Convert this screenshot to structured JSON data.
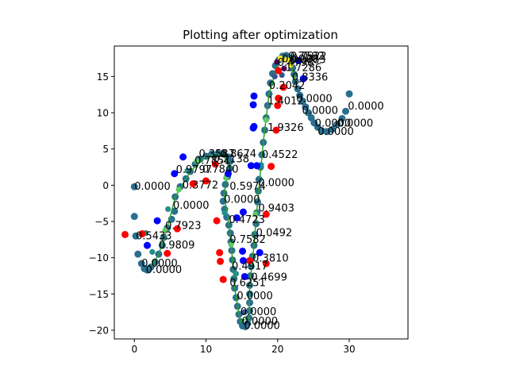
{
  "chart_data": {
    "type": "scatter",
    "title": "Plotting after optimization",
    "xlabel": "",
    "ylabel": "",
    "xlim": [
      -2.8,
      38.2
    ],
    "ylim": [
      -21.2,
      19.2
    ],
    "xticks": [
      0,
      10,
      20,
      30
    ],
    "yticks": [
      -20,
      -15,
      -10,
      -5,
      0,
      5,
      10,
      15
    ],
    "grid": false,
    "legend": "none",
    "colors": {
      "trajectory": "#2b6f8e",
      "line": "#2ca02c",
      "red": "#ff0000",
      "blue": "#0000ff",
      "viridis": [
        "#440154",
        "#3b528b",
        "#21918c",
        "#5ec962",
        "#fde725"
      ]
    },
    "trajectory": [
      {
        "x": 0.0,
        "y": -0.2
      },
      {
        "x": 0.0,
        "y": -4.3
      },
      {
        "x": 0.2,
        "y": -7.0
      },
      {
        "x": 0.5,
        "y": -9.5
      },
      {
        "x": 1.0,
        "y": -10.8
      },
      {
        "x": 1.4,
        "y": -11.5
      },
      {
        "x": 1.8,
        "y": -11.7
      },
      {
        "x": 2.3,
        "y": -11.3
      },
      {
        "x": 2.9,
        "y": -10.6
      },
      {
        "x": 3.4,
        "y": -9.5
      },
      {
        "x": 3.9,
        "y": -8.3
      },
      {
        "x": 4.1,
        "y": -7.2
      },
      {
        "x": 4.6,
        "y": -5.9
      },
      {
        "x": 5.2,
        "y": -4.7
      },
      {
        "x": 5.6,
        "y": -3.6
      },
      {
        "x": 5.7,
        "y": -1.6
      },
      {
        "x": 6.4,
        "y": -0.2
      },
      {
        "x": 7.2,
        "y": 0.9
      },
      {
        "x": 7.8,
        "y": 1.9
      },
      {
        "x": 8.5,
        "y": 2.9
      },
      {
        "x": 9.2,
        "y": 3.6
      },
      {
        "x": 10.0,
        "y": 4.0
      },
      {
        "x": 10.8,
        "y": 4.3
      },
      {
        "x": 11.7,
        "y": 4.4
      },
      {
        "x": 12.4,
        "y": 4.3
      },
      {
        "x": 13.1,
        "y": 3.9
      },
      {
        "x": 13.4,
        "y": 3.3
      },
      {
        "x": 13.3,
        "y": 2.3
      },
      {
        "x": 13.0,
        "y": 1.2
      },
      {
        "x": 12.7,
        "y": 0.1
      },
      {
        "x": 12.5,
        "y": -1.1
      },
      {
        "x": 12.4,
        "y": -2.2
      },
      {
        "x": 12.6,
        "y": -3.3
      },
      {
        "x": 12.9,
        "y": -4.4
      },
      {
        "x": 13.2,
        "y": -5.5
      },
      {
        "x": 13.4,
        "y": -6.6
      },
      {
        "x": 13.5,
        "y": -7.8
      },
      {
        "x": 13.6,
        "y": -9.0
      },
      {
        "x": 13.7,
        "y": -10.3
      },
      {
        "x": 13.8,
        "y": -11.6
      },
      {
        "x": 13.9,
        "y": -12.9
      },
      {
        "x": 14.0,
        "y": -14.2
      },
      {
        "x": 14.2,
        "y": -15.5
      },
      {
        "x": 14.4,
        "y": -16.7
      },
      {
        "x": 14.6,
        "y": -17.8
      },
      {
        "x": 14.8,
        "y": -18.8
      },
      {
        "x": 15.1,
        "y": -19.4
      },
      {
        "x": 15.5,
        "y": -19.5
      },
      {
        "x": 15.8,
        "y": -19.1
      },
      {
        "x": 16.0,
        "y": -18.3
      },
      {
        "x": 16.1,
        "y": -17.3
      },
      {
        "x": 16.1,
        "y": -16.2
      },
      {
        "x": 16.1,
        "y": -15.0
      },
      {
        "x": 16.1,
        "y": -13.8
      },
      {
        "x": 16.2,
        "y": -12.5
      },
      {
        "x": 16.3,
        "y": -11.2
      },
      {
        "x": 16.5,
        "y": -9.8
      },
      {
        "x": 16.7,
        "y": -8.3
      },
      {
        "x": 16.8,
        "y": -6.8
      },
      {
        "x": 17.0,
        "y": -5.3
      },
      {
        "x": 17.1,
        "y": -3.8
      },
      {
        "x": 17.2,
        "y": -2.3
      },
      {
        "x": 17.3,
        "y": -0.8
      },
      {
        "x": 17.4,
        "y": 0.8
      },
      {
        "x": 17.6,
        "y": 2.5
      },
      {
        "x": 17.8,
        "y": 4.2
      },
      {
        "x": 18.0,
        "y": 5.9
      },
      {
        "x": 18.2,
        "y": 7.6
      },
      {
        "x": 18.4,
        "y": 9.3
      },
      {
        "x": 18.6,
        "y": 11.0
      },
      {
        "x": 18.8,
        "y": 12.6
      },
      {
        "x": 19.0,
        "y": 14.1
      },
      {
        "x": 19.3,
        "y": 15.4
      },
      {
        "x": 19.7,
        "y": 16.5
      },
      {
        "x": 20.2,
        "y": 17.3
      },
      {
        "x": 20.7,
        "y": 17.8
      },
      {
        "x": 21.2,
        "y": 17.9
      },
      {
        "x": 21.6,
        "y": 17.6
      },
      {
        "x": 21.9,
        "y": 17.0
      },
      {
        "x": 22.1,
        "y": 16.2
      },
      {
        "x": 22.3,
        "y": 15.3
      },
      {
        "x": 22.5,
        "y": 14.3
      },
      {
        "x": 22.8,
        "y": 13.3
      },
      {
        "x": 23.1,
        "y": 12.4
      },
      {
        "x": 23.5,
        "y": 11.6
      },
      {
        "x": 23.9,
        "y": 10.8
      },
      {
        "x": 24.3,
        "y": 10.0
      },
      {
        "x": 24.7,
        "y": 9.3
      },
      {
        "x": 25.1,
        "y": 8.6
      },
      {
        "x": 25.6,
        "y": 8.0
      },
      {
        "x": 26.2,
        "y": 7.5
      },
      {
        "x": 26.9,
        "y": 7.4
      },
      {
        "x": 27.6,
        "y": 7.7
      },
      {
        "x": 28.3,
        "y": 8.4
      },
      {
        "x": 29.0,
        "y": 9.2
      },
      {
        "x": 29.5,
        "y": 10.2
      },
      {
        "x": 30.0,
        "y": 12.6
      }
    ],
    "green_path": [
      {
        "x": 2.3,
        "y": -11.3
      },
      {
        "x": 3.4,
        "y": -9.5
      },
      {
        "x": 4.6,
        "y": -5.9
      },
      {
        "x": 5.7,
        "y": -1.6
      },
      {
        "x": 7.8,
        "y": 1.9
      },
      {
        "x": 10.0,
        "y": 4.0
      },
      {
        "x": 12.4,
        "y": 4.3
      },
      {
        "x": 13.3,
        "y": 2.3
      },
      {
        "x": 12.5,
        "y": -1.1
      },
      {
        "x": 13.2,
        "y": -5.5
      },
      {
        "x": 13.6,
        "y": -9.0
      },
      {
        "x": 14.0,
        "y": -14.2
      },
      {
        "x": 14.8,
        "y": -18.8
      },
      {
        "x": 16.0,
        "y": -18.3
      },
      {
        "x": 16.1,
        "y": -13.8
      },
      {
        "x": 16.7,
        "y": -8.3
      },
      {
        "x": 17.2,
        "y": -2.3
      },
      {
        "x": 18.0,
        "y": 5.9
      },
      {
        "x": 18.8,
        "y": 12.6
      },
      {
        "x": 20.2,
        "y": 17.3
      },
      {
        "x": 21.6,
        "y": 17.6
      },
      {
        "x": 22.5,
        "y": 14.3
      }
    ],
    "colored_points": [
      {
        "x": 1.6,
        "y": -6.6,
        "c": 2
      },
      {
        "x": 2.5,
        "y": -9.2,
        "c": 2
      },
      {
        "x": 4.3,
        "y": -6.2,
        "c": 3
      },
      {
        "x": 4.7,
        "y": -3.3,
        "c": 2
      },
      {
        "x": 6.2,
        "y": -0.6,
        "c": 3
      },
      {
        "x": 7.4,
        "y": 2.0,
        "c": 2
      },
      {
        "x": 8.7,
        "y": 3.3,
        "c": 3
      },
      {
        "x": 11.2,
        "y": 4.1,
        "c": 2
      },
      {
        "x": 12.8,
        "y": 1.0,
        "c": 3
      },
      {
        "x": 12.6,
        "y": -3.8,
        "c": 2
      },
      {
        "x": 13.5,
        "y": -8.2,
        "c": 3
      },
      {
        "x": 14.2,
        "y": -12.2,
        "c": 2
      },
      {
        "x": 15.4,
        "y": -17.5,
        "c": 1
      },
      {
        "x": 16.4,
        "y": -10.2,
        "c": 2
      },
      {
        "x": 16.9,
        "y": -4.0,
        "c": 3
      },
      {
        "x": 17.7,
        "y": 2.8,
        "c": 2
      },
      {
        "x": 18.4,
        "y": 9.0,
        "c": 3
      },
      {
        "x": 19.6,
        "y": 15.0,
        "c": 1
      },
      {
        "x": 19.9,
        "y": 17.0,
        "c": 0
      },
      {
        "x": 20.4,
        "y": 17.5,
        "c": 4
      },
      {
        "x": 21.3,
        "y": 17.3,
        "c": 4
      },
      {
        "x": 21.8,
        "y": 16.6,
        "c": 4
      },
      {
        "x": 20.9,
        "y": 16.1,
        "c": 0
      },
      {
        "x": 20.6,
        "y": 15.2,
        "c": 1
      }
    ],
    "red_points": [
      {
        "x": -1.3,
        "y": -6.8
      },
      {
        "x": 1.1,
        "y": -6.7
      },
      {
        "x": 4.6,
        "y": -9.4
      },
      {
        "x": 6.0,
        "y": -6.0
      },
      {
        "x": 8.2,
        "y": 0.2
      },
      {
        "x": 10.0,
        "y": 0.6
      },
      {
        "x": 11.3,
        "y": 2.9
      },
      {
        "x": 11.5,
        "y": -4.9
      },
      {
        "x": 11.9,
        "y": -9.3
      },
      {
        "x": 12.0,
        "y": -10.5
      },
      {
        "x": 12.4,
        "y": -13.0
      },
      {
        "x": 16.1,
        "y": -10.4
      },
      {
        "x": 18.4,
        "y": -4.0
      },
      {
        "x": 18.4,
        "y": -10.8
      },
      {
        "x": 19.1,
        "y": 2.6
      },
      {
        "x": 19.8,
        "y": 7.6
      },
      {
        "x": 20.1,
        "y": 12.0
      },
      {
        "x": 20.0,
        "y": 11.0
      },
      {
        "x": 20.8,
        "y": 13.5
      },
      {
        "x": 20.1,
        "y": 15.8
      }
    ],
    "blue_points": [
      {
        "x": 1.8,
        "y": -8.3
      },
      {
        "x": 3.2,
        "y": -4.9
      },
      {
        "x": 5.6,
        "y": 1.6
      },
      {
        "x": 6.8,
        "y": 3.9
      },
      {
        "x": 13.1,
        "y": 1.6
      },
      {
        "x": 14.3,
        "y": -4.5
      },
      {
        "x": 15.2,
        "y": -3.7
      },
      {
        "x": 15.1,
        "y": -9.1
      },
      {
        "x": 15.2,
        "y": -10.4
      },
      {
        "x": 15.4,
        "y": -12.6
      },
      {
        "x": 16.3,
        "y": 2.7
      },
      {
        "x": 16.6,
        "y": 7.9
      },
      {
        "x": 16.7,
        "y": 12.3
      },
      {
        "x": 16.6,
        "y": 11.1
      },
      {
        "x": 16.7,
        "y": 8.1
      },
      {
        "x": 17.1,
        "y": 2.7
      },
      {
        "x": 17.5,
        "y": -9.3
      },
      {
        "x": 23.6,
        "y": 14.7
      },
      {
        "x": 22.9,
        "y": 17.2
      }
    ],
    "annotations": [
      {
        "text": "0.0000",
        "x": 0.0,
        "y": -0.2
      },
      {
        "text": "0.5433",
        "x": 0.2,
        "y": -7.0
      },
      {
        "text": "0.0000",
        "x": 1.0,
        "y": -10.8
      },
      {
        "text": "0.0000",
        "x": 1.6,
        "y": -11.7
      },
      {
        "text": "0.9809",
        "x": 3.4,
        "y": -8.3
      },
      {
        "text": "0.7923",
        "x": 4.3,
        "y": -5.6
      },
      {
        "text": "0.0000",
        "x": 5.4,
        "y": -2.8
      },
      {
        "text": "0.3772",
        "x": 6.7,
        "y": 0.0
      },
      {
        "text": "0.9797",
        "x": 5.8,
        "y": 2.1
      },
      {
        "text": "0.7851",
        "x": 8.4,
        "y": 3.4
      },
      {
        "text": "0.7840",
        "x": 9.5,
        "y": 2.2
      },
      {
        "text": "0.2138",
        "x": 11.0,
        "y": 3.6
      },
      {
        "text": "0.8674",
        "x": 12.0,
        "y": 4.3
      },
      {
        "text": "0.3587",
        "x": 9.0,
        "y": 4.3
      },
      {
        "text": "0.5974",
        "x": 13.3,
        "y": -0.2
      },
      {
        "text": "0.0000",
        "x": 12.5,
        "y": -2.0
      },
      {
        "text": "0.4723",
        "x": 13.2,
        "y": -4.8
      },
      {
        "text": "0.7582",
        "x": 13.3,
        "y": -7.5
      },
      {
        "text": "0.4917",
        "x": 13.6,
        "y": -11.2
      },
      {
        "text": "0.6251",
        "x": 13.3,
        "y": -13.5
      },
      {
        "text": "0.0000",
        "x": 14.3,
        "y": -15.3
      },
      {
        "text": "0.0000",
        "x": 14.8,
        "y": -17.5
      },
      {
        "text": "0.0000",
        "x": 15.0,
        "y": -18.8
      },
      {
        "text": "0.0000",
        "x": 15.3,
        "y": -19.4
      },
      {
        "text": "0.4699",
        "x": 16.3,
        "y": -12.7
      },
      {
        "text": "0.3810",
        "x": 16.5,
        "y": -10.1
      },
      {
        "text": "0.0492",
        "x": 17.0,
        "y": -6.6
      },
      {
        "text": "0.9403",
        "x": 17.3,
        "y": -3.2
      },
      {
        "text": "0.0000",
        "x": 17.3,
        "y": 0.3
      },
      {
        "text": "0.4522",
        "x": 17.8,
        "y": 4.2
      },
      {
        "text": "1.9326",
        "x": 18.6,
        "y": 7.9
      },
      {
        "text": "1.4012",
        "x": 18.6,
        "y": 11.6
      },
      {
        "text": "0.2042",
        "x": 18.8,
        "y": 13.7
      },
      {
        "text": "0.0000",
        "x": 22.6,
        "y": 11.9
      },
      {
        "text": "0.0000",
        "x": 23.4,
        "y": 10.3
      },
      {
        "text": "0.0000",
        "x": 25.2,
        "y": 8.5
      },
      {
        "text": "0.0000",
        "x": 25.6,
        "y": 7.4
      },
      {
        "text": "0.0000",
        "x": 28.3,
        "y": 8.5
      },
      {
        "text": "0.0000",
        "x": 29.8,
        "y": 10.9
      },
      {
        "text": "0.8336",
        "x": 22.0,
        "y": 14.9
      },
      {
        "text": "1.7286",
        "x": 21.1,
        "y": 16.2
      },
      {
        "text": "0.0083",
        "x": 21.7,
        "y": 17.3
      },
      {
        "text": "0.7592",
        "x": 21.5,
        "y": 17.8
      },
      {
        "text": "0.4798",
        "x": 20.0,
        "y": 16.9
      },
      {
        "text": "0.7522",
        "x": 21.8,
        "y": 17.8
      },
      {
        "text": "0.0000",
        "x": 20.6,
        "y": 17.4
      }
    ]
  }
}
